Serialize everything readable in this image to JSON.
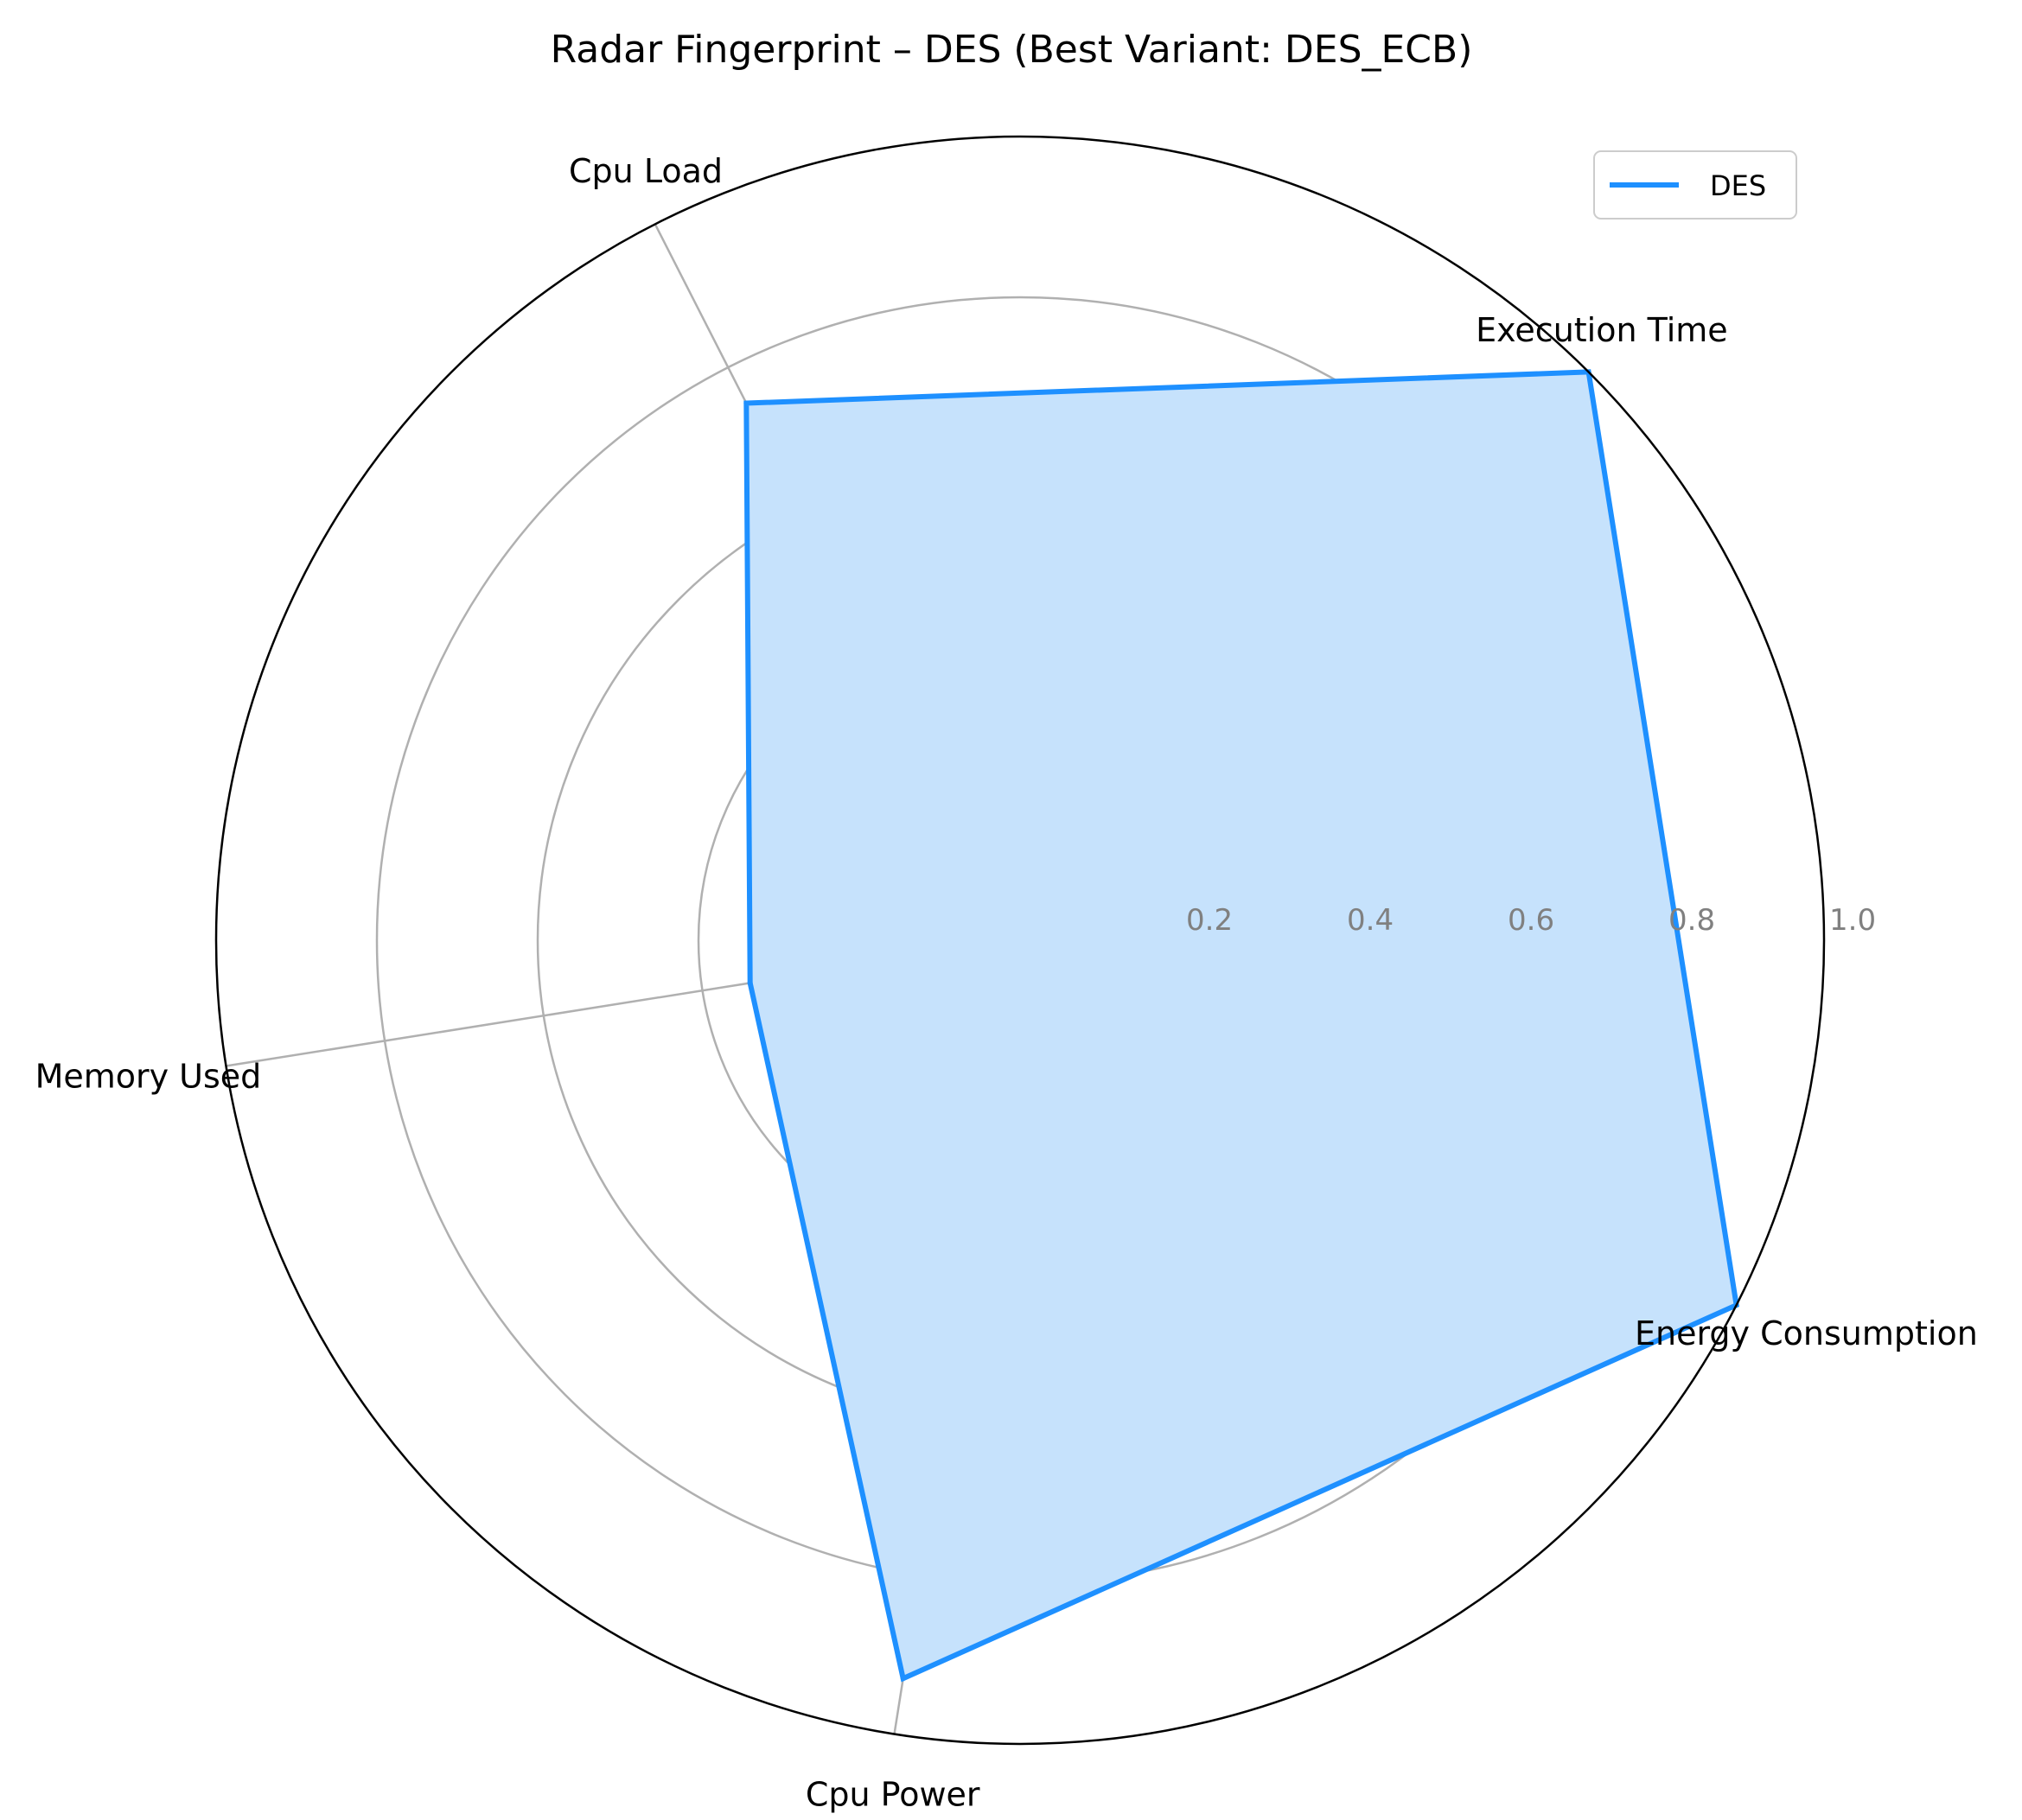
{
  "chart_data": {
    "type": "radar",
    "title": "Radar Fingerprint – DES (Best Variant: DES_ECB)",
    "axes": [
      "Execution Time",
      "Cpu Load",
      "Memory Used",
      "Cpu Power",
      "Energy Consumption"
    ],
    "radial_ticks": [
      0.2,
      0.4,
      0.6,
      0.8,
      1.0
    ],
    "radial_tick_labels": [
      "0.2",
      "0.4",
      "0.6",
      "0.8",
      "1.0"
    ],
    "rlim": [
      0,
      1.0
    ],
    "grid": true,
    "legend_position": "top-right",
    "series": [
      {
        "name": "DES",
        "values": [
          1.0,
          0.75,
          0.34,
          0.93,
          1.0
        ],
        "color": "#1E90FF",
        "fill_color": "#C6E2FC"
      }
    ]
  }
}
